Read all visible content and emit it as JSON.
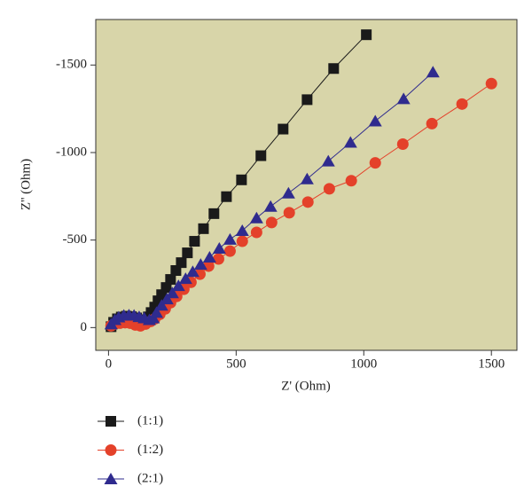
{
  "chart_data": {
    "type": "line",
    "xlabel": "Z' (Ohm)",
    "ylabel": "Z'' (Ohm)",
    "xlim": [
      -50,
      1600
    ],
    "xticks": [
      0,
      500,
      1000,
      1500
    ],
    "ylim": [
      130,
      -1760
    ],
    "yticks": [
      0,
      -500,
      -1000,
      -1500
    ],
    "background": "#d8d5a9",
    "legend": "bottom",
    "series": [
      {
        "name": "(1:1)",
        "color": "#1a1a1a",
        "marker": "square",
        "x": [
          10,
          20,
          35,
          50,
          70,
          90,
          110,
          130,
          150,
          156,
          167,
          181,
          194,
          208,
          226,
          243,
          264,
          285,
          309,
          337,
          372,
          413,
          462,
          521,
          597,
          684,
          778,
          882,
          1010
        ],
        "values": [
          -5,
          -30,
          -50,
          -60,
          -65,
          -62,
          -55,
          -45,
          -35,
          -61,
          -86,
          -117,
          -153,
          -188,
          -229,
          -275,
          -326,
          -371,
          -427,
          -493,
          -565,
          -651,
          -748,
          -844,
          -982,
          -1134,
          -1302,
          -1480,
          -1673
        ]
      },
      {
        "name": "(1:2)",
        "color": "#e4412a",
        "marker": "circle",
        "x": [
          10,
          25,
          45,
          65,
          85,
          105,
          125,
          145,
          165,
          181,
          201,
          222,
          243,
          267,
          295,
          323,
          358,
          392,
          431,
          476,
          524,
          580,
          639,
          708,
          781,
          865,
          951,
          1045,
          1153,
          1267,
          1385,
          1500
        ],
        "values": [
          -10,
          -20,
          -25,
          -28,
          -25,
          -15,
          -10,
          -20,
          -35,
          -50,
          -76,
          -107,
          -142,
          -178,
          -219,
          -259,
          -305,
          -351,
          -392,
          -437,
          -493,
          -544,
          -600,
          -656,
          -717,
          -793,
          -839,
          -941,
          -1048,
          -1165,
          -1277,
          -1394
        ]
      },
      {
        "name": "(2:1)",
        "color": "#2f2b8e",
        "marker": "triangle",
        "x": [
          10,
          25,
          40,
          60,
          80,
          100,
          120,
          140,
          160,
          175,
          188,
          208,
          229,
          250,
          274,
          302,
          330,
          361,
          396,
          434,
          476,
          524,
          580,
          635,
          705,
          778,
          861,
          948,
          1045,
          1156,
          1271
        ],
        "values": [
          -20,
          -45,
          -60,
          -70,
          -72,
          -70,
          -62,
          -55,
          -45,
          -55,
          -86,
          -127,
          -163,
          -198,
          -239,
          -280,
          -320,
          -361,
          -402,
          -453,
          -504,
          -554,
          -626,
          -692,
          -768,
          -849,
          -951,
          -1058,
          -1180,
          -1307,
          -1460
        ]
      }
    ]
  }
}
